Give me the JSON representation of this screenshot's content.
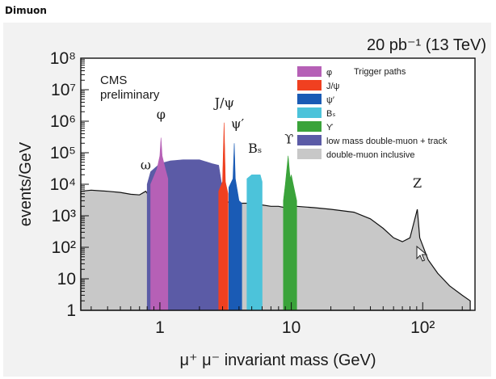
{
  "page_label": "Dimuon",
  "chart_data": {
    "type": "area",
    "title": "20 pb⁻¹ (13 TeV)",
    "xlabel": "μ⁺ μ⁻ invariant mass (GeV)",
    "ylabel": "events/GeV",
    "xscale": "log",
    "yscale": "log",
    "xlim": [
      0.25,
      250
    ],
    "ylim": [
      1,
      100000000
    ],
    "x_tick_labels": [
      {
        "value": 1,
        "label": "1"
      },
      {
        "value": 10,
        "label": "10"
      },
      {
        "value": 100,
        "label": "10²"
      }
    ],
    "y_tick_labels": [
      {
        "value": 1,
        "label": "1"
      },
      {
        "value": 10,
        "label": "10"
      },
      {
        "value": 100,
        "label": "10²"
      },
      {
        "value": 1000,
        "label": "10³"
      },
      {
        "value": 10000,
        "label": "10⁴"
      },
      {
        "value": 100000,
        "label": "10⁵"
      },
      {
        "value": 1000000,
        "label": "10⁶"
      },
      {
        "value": 10000000,
        "label": "10⁷"
      },
      {
        "value": 100000000,
        "label": "10⁸"
      }
    ],
    "grid": false,
    "legend_position": "top-right",
    "text_annotation": "CMS\npreliminary",
    "legend_header": "Trigger paths",
    "series": [
      {
        "name": "double-muon inclusive",
        "color": "#c8c8c8",
        "points": [
          [
            0.25,
            6000
          ],
          [
            0.3,
            6500
          ],
          [
            0.4,
            6000
          ],
          [
            0.5,
            5500
          ],
          [
            0.6,
            4800
          ],
          [
            0.7,
            4600
          ],
          [
            0.78,
            6000
          ],
          [
            0.8,
            5200
          ],
          [
            0.9,
            5500
          ],
          [
            1.0,
            7000
          ],
          [
            1.02,
            40000
          ],
          [
            1.05,
            8000
          ],
          [
            1.2,
            6000
          ],
          [
            1.5,
            4500
          ],
          [
            2,
            4500
          ],
          [
            2.5,
            4000
          ],
          [
            2.8,
            3000
          ],
          [
            3.0,
            3500
          ],
          [
            3.08,
            200000
          ],
          [
            3.15,
            3000
          ],
          [
            3.4,
            2600
          ],
          [
            3.65,
            15000
          ],
          [
            3.75,
            2500
          ],
          [
            4,
            2500
          ],
          [
            5,
            2500
          ],
          [
            6,
            2200
          ],
          [
            7,
            2000
          ],
          [
            8,
            2000
          ],
          [
            9,
            1800
          ],
          [
            9.4,
            10000
          ],
          [
            9.6,
            2000
          ],
          [
            10,
            5000
          ],
          [
            10.4,
            3000
          ],
          [
            11,
            2000
          ],
          [
            15,
            1800
          ],
          [
            20,
            1600
          ],
          [
            30,
            1300
          ],
          [
            40,
            800
          ],
          [
            50,
            400
          ],
          [
            60,
            200
          ],
          [
            70,
            150
          ],
          [
            80,
            200
          ],
          [
            91,
            1600
          ],
          [
            95,
            200
          ],
          [
            110,
            40
          ],
          [
            130,
            15
          ],
          [
            160,
            6
          ],
          [
            200,
            3
          ],
          [
            230,
            2
          ]
        ]
      },
      {
        "name": "low mass double-muon + track",
        "color": "#5b5ba6",
        "points": [
          [
            0.8,
            10000
          ],
          [
            0.85,
            25000
          ],
          [
            1.0,
            45000
          ],
          [
            1.2,
            55000
          ],
          [
            1.5,
            60000
          ],
          [
            2,
            60000
          ],
          [
            2.5,
            45000
          ],
          [
            2.8,
            40000
          ],
          [
            2.95,
            10000
          ]
        ]
      },
      {
        "name": "φ",
        "color": "#b660b6",
        "points": [
          [
            0.85,
            10000
          ],
          [
            0.95,
            30000
          ],
          [
            1.0,
            80000
          ],
          [
            1.02,
            300000
          ],
          [
            1.04,
            80000
          ],
          [
            1.1,
            30000
          ],
          [
            1.15,
            15000
          ]
        ]
      },
      {
        "name": "J/ψ",
        "color": "#f04020",
        "points": [
          [
            2.8,
            6000
          ],
          [
            3.0,
            12000
          ],
          [
            3.08,
            900000
          ],
          [
            3.15,
            12000
          ],
          [
            3.3,
            5000
          ]
        ]
      },
      {
        "name": "ψ′",
        "color": "#1a5bb5",
        "points": [
          [
            3.35,
            8000
          ],
          [
            3.6,
            15000
          ],
          [
            3.68,
            200000
          ],
          [
            3.75,
            15000
          ],
          [
            4.0,
            3000
          ],
          [
            4.2,
            2500
          ]
        ]
      },
      {
        "name": "Bₛ",
        "color": "#4cc3da",
        "points": [
          [
            4.6,
            15000
          ],
          [
            5.0,
            20000
          ],
          [
            5.4,
            20000
          ],
          [
            5.8,
            20000
          ],
          [
            6.0,
            12000
          ]
        ]
      },
      {
        "name": "ϒ",
        "color": "#3aa33a",
        "points": [
          [
            8.7,
            3000
          ],
          [
            9.0,
            10000
          ],
          [
            9.46,
            80000
          ],
          [
            9.8,
            15000
          ],
          [
            10.0,
            20000
          ],
          [
            10.35,
            10000
          ],
          [
            11,
            3000
          ]
        ]
      }
    ],
    "peak_labels": [
      {
        "text": "ω",
        "x": 0.78,
        "y": 30000
      },
      {
        "text": "φ",
        "x": 1.02,
        "y": 1200000
      },
      {
        "text": "J/ψ",
        "x": 3.1,
        "y": 2800000
      },
      {
        "text": "ψ′",
        "x": 3.9,
        "y": 600000
      },
      {
        "text": "Bₛ",
        "x": 5.3,
        "y": 100000
      },
      {
        "text": "ϒ",
        "x": 9.6,
        "y": 200000
      },
      {
        "text": "Z",
        "x": 91,
        "y": 8000
      }
    ]
  }
}
